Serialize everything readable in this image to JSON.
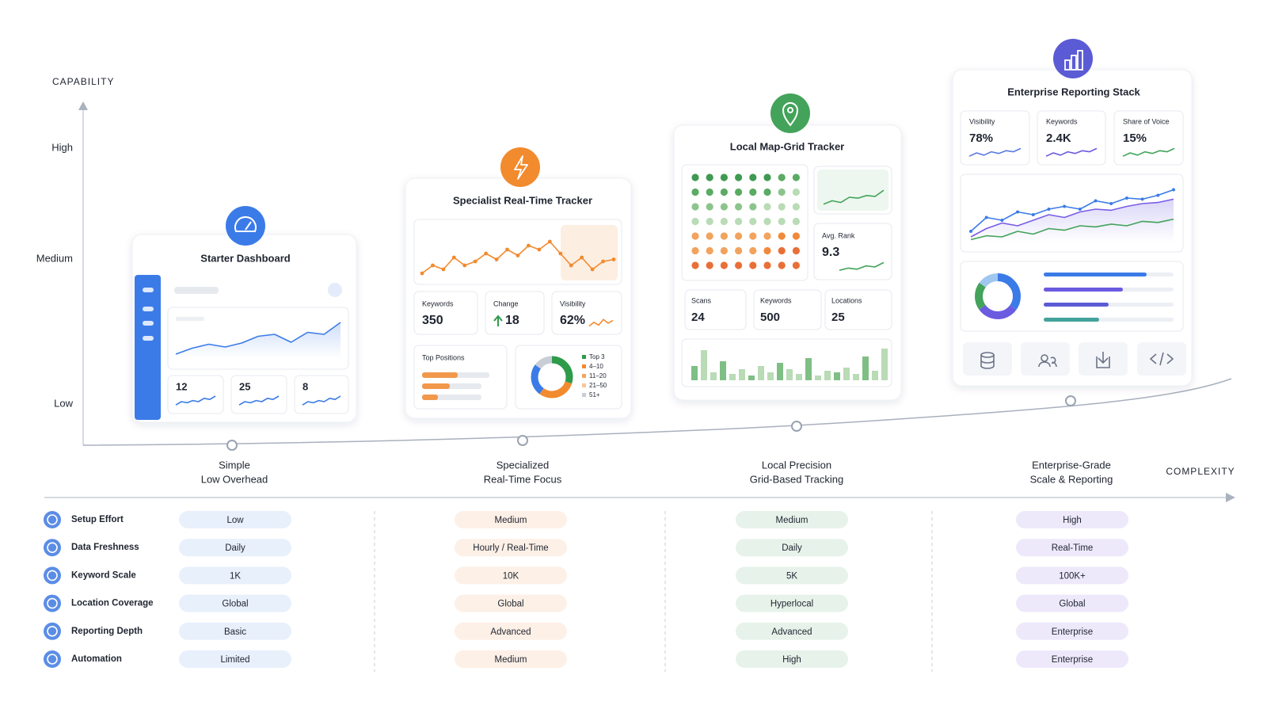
{
  "axes": {
    "y_title": "CAPABILITY",
    "y_levels": [
      "High",
      "Medium",
      "Low"
    ],
    "x_title": "COMPLEXITY"
  },
  "tiers": [
    {
      "title": "Starter Dashboard",
      "caption": [
        "Simple",
        "Low Overhead"
      ],
      "stats": [
        "12",
        "25",
        "8"
      ]
    },
    {
      "title": "Specialist Real-Time Tracker",
      "caption": [
        "Specialized",
        "Real-Time Focus"
      ],
      "metrics": [
        {
          "label": "Keywords",
          "value": "350"
        },
        {
          "label": "Change",
          "value": "18"
        },
        {
          "label": "Visibility",
          "value": "62%"
        }
      ],
      "positions_title": "Top Positions",
      "legend": [
        "Top 3",
        "4–10",
        "11–20",
        "21–50",
        "51+"
      ]
    },
    {
      "title": "Local Map-Grid Tracker",
      "caption": [
        "Local Precision",
        "Grid-Based Tracking"
      ],
      "metrics": [
        {
          "label": "Avg. Rank",
          "value": "9.3"
        },
        {
          "label": "Scans",
          "value": "24"
        },
        {
          "label": "Keywords",
          "value": "500"
        },
        {
          "label": "Locations",
          "value": "25"
        }
      ]
    },
    {
      "title": "Enterprise Reporting Stack",
      "caption": [
        "Enterprise-Grade",
        "Scale & Reporting"
      ],
      "metrics": [
        {
          "label": "Visibility",
          "value": "78%"
        },
        {
          "label": "Keywords",
          "value": "2.4K"
        },
        {
          "label": "Share of Voice",
          "value": "15%"
        }
      ]
    }
  ],
  "table": {
    "rows": [
      {
        "label": "Setup Effort",
        "values": [
          "Low",
          "Medium",
          "Medium",
          "High"
        ]
      },
      {
        "label": "Data Freshness",
        "values": [
          "Daily",
          "Hourly / Real-Time",
          "Daily",
          "Real-Time"
        ]
      },
      {
        "label": "Keyword Scale",
        "values": [
          "1K",
          "10K",
          "5K",
          "100K+"
        ]
      },
      {
        "label": "Location Coverage",
        "values": [
          "Global",
          "Global",
          "Hyperlocal",
          "Global"
        ]
      },
      {
        "label": "Reporting Depth",
        "values": [
          "Basic",
          "Advanced",
          "Advanced",
          "Enterprise"
        ]
      },
      {
        "label": "Automation",
        "values": [
          "Limited",
          "Medium",
          "High",
          "Enterprise"
        ]
      }
    ]
  }
}
